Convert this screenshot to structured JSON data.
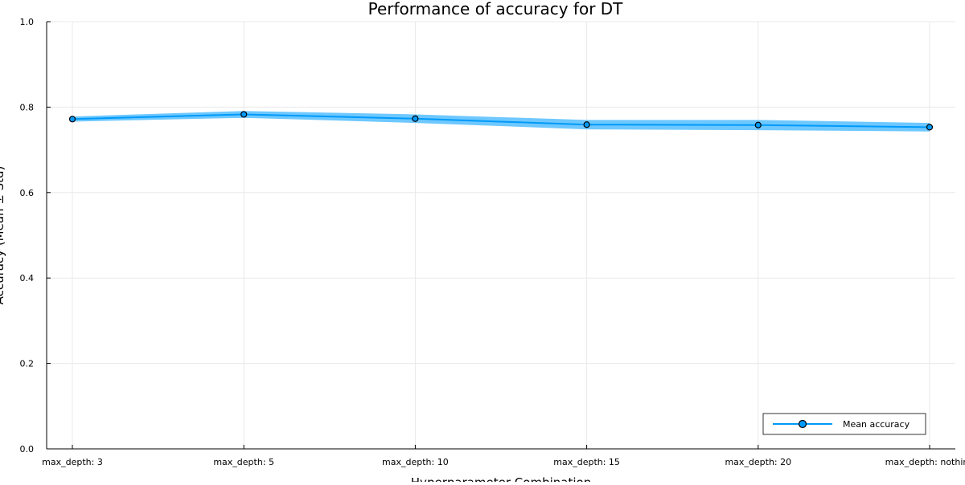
{
  "chart_data": {
    "type": "line",
    "title": "Performance of accuracy for DT",
    "xlabel": "Hyperparameter Combination",
    "ylabel": "Accuracy (Mean ± Std)",
    "categories": [
      "max_depth: 3",
      "max_depth: 5",
      "max_depth: 10",
      "max_depth: 15",
      "max_depth: 20",
      "max_depth: nothing"
    ],
    "series": [
      {
        "name": "Mean accuracy",
        "values": [
          0.772,
          0.783,
          0.773,
          0.759,
          0.758,
          0.753
        ],
        "std": [
          0.006,
          0.008,
          0.01,
          0.011,
          0.012,
          0.01
        ],
        "color": "#009af9",
        "band_color": "#6ec8ff",
        "marker": "circle"
      }
    ],
    "ylim": [
      0,
      1
    ],
    "yticks": [
      0.0,
      0.2,
      0.4,
      0.6,
      0.8,
      1.0
    ],
    "ytick_labels": [
      "0.0",
      "0.2",
      "0.4",
      "0.6",
      "0.8",
      "1.0"
    ],
    "grid": true,
    "legend_position": "bottom-right"
  }
}
